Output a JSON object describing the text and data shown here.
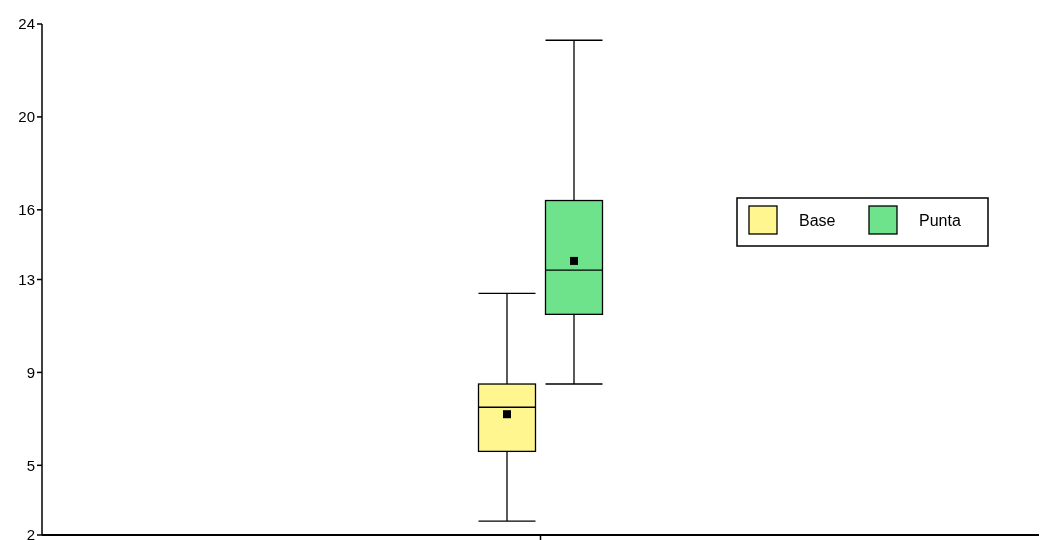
{
  "chart_data": {
    "type": "box",
    "categories": [
      null
    ],
    "series": [
      {
        "name": "Base",
        "color": "#fff68f",
        "boxes": [
          {
            "low": 2.6,
            "q1": 5.6,
            "median": 7.5,
            "q3": 8.5,
            "high": 12.4,
            "mean": 7.2
          }
        ]
      },
      {
        "name": "Punta",
        "color": "#6ee38c",
        "boxes": [
          {
            "low": 8.5,
            "q1": 11.5,
            "median": 13.4,
            "q3": 16.4,
            "high": 23.3,
            "mean": 13.8
          }
        ]
      }
    ],
    "ylim": [
      2,
      24
    ],
    "yticks": [
      2,
      5,
      9,
      13,
      16,
      20,
      24
    ],
    "legend": "right",
    "grid": false
  }
}
